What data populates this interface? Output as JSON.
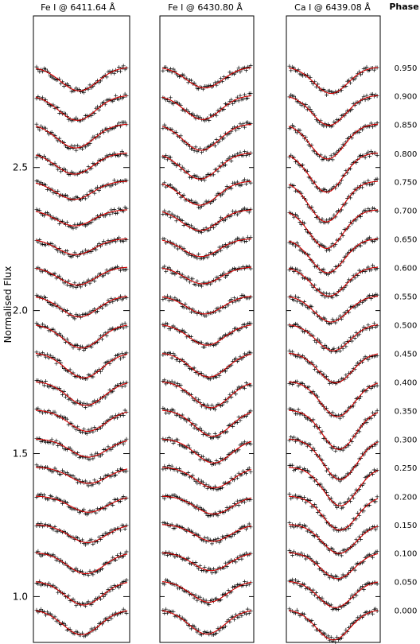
{
  "figure": {
    "ylabel": "Normalised Flux",
    "phase_header": "Phase",
    "panel_titles": [
      "Fe I @ 6411.64 Å",
      "Fe I @ 6430.80 Å",
      "Ca I @ 6439.08 Å"
    ],
    "colors": {
      "model": "#d40000",
      "observed": "#000000",
      "frame": "#000000"
    }
  },
  "chart_data": {
    "type": "line",
    "description_of_series": "Observed line profiles (plus markers, black) and model fits (red), offset vertically by phase",
    "ylabel": "Normalised Flux",
    "ylim": [
      0.84,
      3.03
    ],
    "yticks": [
      1.0,
      1.5,
      2.0,
      2.5
    ],
    "ytick_labels": [
      "1.0",
      "1.5",
      "2.0",
      "2.5"
    ],
    "phases": [
      0.0,
      0.05,
      0.1,
      0.15,
      0.2,
      0.25,
      0.3,
      0.35,
      0.4,
      0.45,
      0.5,
      0.55,
      0.6,
      0.65,
      0.7,
      0.75,
      0.8,
      0.85,
      0.9,
      0.95
    ],
    "phase_labels": [
      "0.000",
      "0.050",
      "0.100",
      "0.150",
      "0.200",
      "0.250",
      "0.300",
      "0.350",
      "0.400",
      "0.450",
      "0.500",
      "0.550",
      "0.600",
      "0.650",
      "0.700",
      "0.750",
      "0.800",
      "0.850",
      "0.900",
      "0.950"
    ],
    "profile_baselines": [
      0.955,
      1.055,
      1.155,
      1.253,
      1.352,
      1.453,
      1.552,
      1.653,
      1.753,
      1.853,
      1.953,
      2.052,
      2.153,
      2.252,
      2.353,
      2.453,
      2.552,
      2.653,
      2.753,
      2.852
    ],
    "panels": [
      {
        "title": "Fe I @ 6411.64 Å",
        "line_depth": 0.08,
        "line_width": 0.45,
        "n_points": 60
      },
      {
        "title": "Fe I @ 6430.80 Å",
        "line_depth": 0.085,
        "line_width": 0.45,
        "n_points": 60
      },
      {
        "title": "Ca I @ 6439.08 Å",
        "line_depth": 0.13,
        "line_width": 0.42,
        "n_points": 60
      }
    ]
  }
}
